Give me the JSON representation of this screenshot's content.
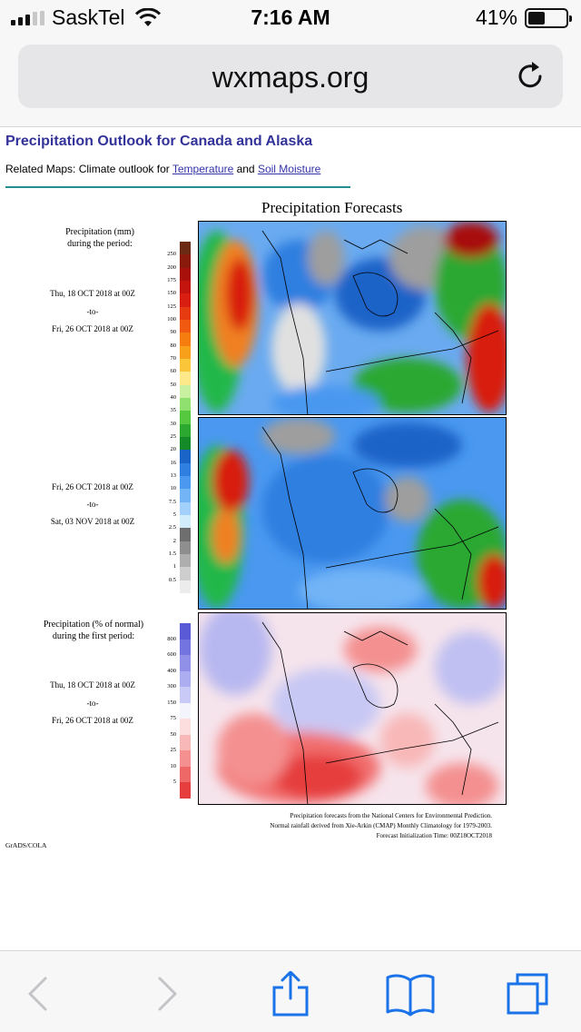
{
  "status_bar": {
    "carrier": "SaskTel",
    "time": "7:16 AM",
    "battery_percent": "41%",
    "signal_bars": 3,
    "signal_bars_max": 5,
    "battery_level": 0.41
  },
  "browser": {
    "url": "wxmaps.org",
    "icons": [
      "reload-icon",
      "back-icon",
      "forward-icon",
      "share-icon",
      "bookmarks-icon",
      "tabs-icon"
    ]
  },
  "page": {
    "title": "Precipitation Outlook for Canada and Alaska",
    "related_prefix": "Related Maps: Climate outlook for ",
    "related_link1": "Temperature",
    "related_mid": " and ",
    "related_link2": "Soil Moisture"
  },
  "figure": {
    "title": "Precipitation Forecasts",
    "legend1": {
      "line1": "Precipitation (mm)",
      "line2": "during the period:",
      "ticks": [
        "250",
        "200",
        "175",
        "150",
        "125",
        "100",
        "90",
        "80",
        "70",
        "60",
        "50",
        "40",
        "35",
        "30",
        "25",
        "20",
        "16",
        "13",
        "10",
        "7.5",
        "5",
        "2.5",
        "2",
        "1.5",
        "1",
        "0.5"
      ],
      "colors": [
        "#6b2a14",
        "#8a1a0c",
        "#a8100c",
        "#c4140e",
        "#d81e10",
        "#e63a10",
        "#ef5a10",
        "#f57d10",
        "#f9a01a",
        "#fbc53a",
        "#fde98a",
        "#c8f0a0",
        "#90e070",
        "#55c840",
        "#2aa830",
        "#148a28",
        "#1a64c8",
        "#2f7fe0",
        "#4a98f0",
        "#72b4f6",
        "#a2d0fa",
        "#d2ecfc",
        "#6e6e6e",
        "#8e8e8e",
        "#aeaeae",
        "#cecece",
        "#ececec"
      ]
    },
    "period1": {
      "from": "Thu, 18 OCT 2018 at 00Z",
      "sep": "-to-",
      "to": "Fri, 26 OCT 2018 at 00Z"
    },
    "period2": {
      "from": "Fri, 26 OCT 2018 at 00Z",
      "sep": "-to-",
      "to": "Sat, 03 NOV 2018 at 00Z"
    },
    "legend2": {
      "line1": "Precipitation (% of normal)",
      "line2": "during the first period:",
      "ticks": [
        "800",
        "600",
        "400",
        "300",
        "150",
        "75",
        "50",
        "25",
        "10",
        "5"
      ],
      "colors": [
        "#5a5ad6",
        "#7474e0",
        "#9090e8",
        "#acacf0",
        "#cacaf6",
        "#f4f4fc",
        "#fcdede",
        "#f8b8b8",
        "#f49090",
        "#ee6868",
        "#e63e3e"
      ]
    },
    "period3": {
      "from": "Thu, 18 OCT 2018 at 00Z",
      "sep": "-to-",
      "to": "Fri, 26 OCT 2018 at 00Z"
    },
    "notes": [
      "Precipitation forecasts from the National Centers for Environmental Prediction.",
      "Normal rainfall derived from Xie-Arkin (CMAP) Monthly Climatology for 1979-2003.",
      "Forecast Initialization Time: 00Z18OCT2018"
    ],
    "credit": "GrADS/COLA"
  }
}
